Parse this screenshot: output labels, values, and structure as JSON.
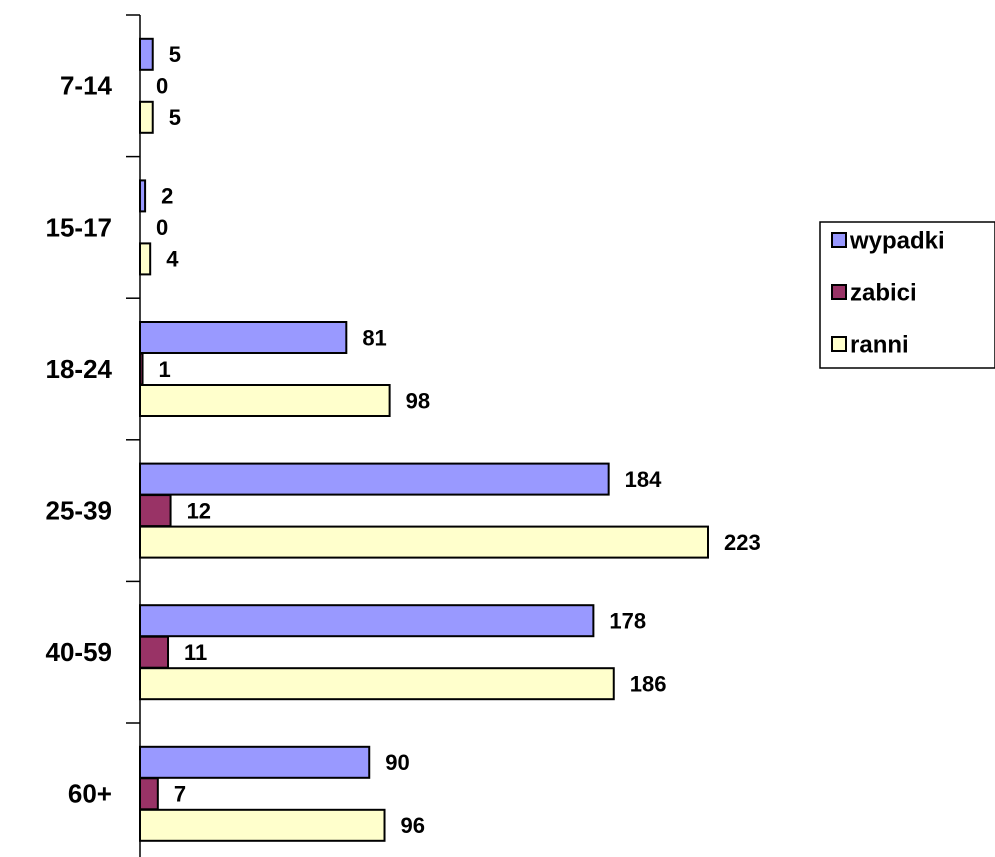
{
  "chart_data": {
    "type": "barh",
    "categories": [
      "7-14",
      "15-17",
      "18-24",
      "25-39",
      "40-59",
      "60+"
    ],
    "series": [
      {
        "name": "wypadki",
        "color": "#9999ff",
        "values": [
          5,
          2,
          81,
          184,
          178,
          90
        ]
      },
      {
        "name": "zabici",
        "color": "#993366",
        "values": [
          0,
          0,
          1,
          12,
          11,
          7
        ]
      },
      {
        "name": "ranni",
        "color": "#ffffcc",
        "values": [
          5,
          4,
          98,
          223,
          186,
          96
        ]
      }
    ],
    "legend": "right"
  }
}
